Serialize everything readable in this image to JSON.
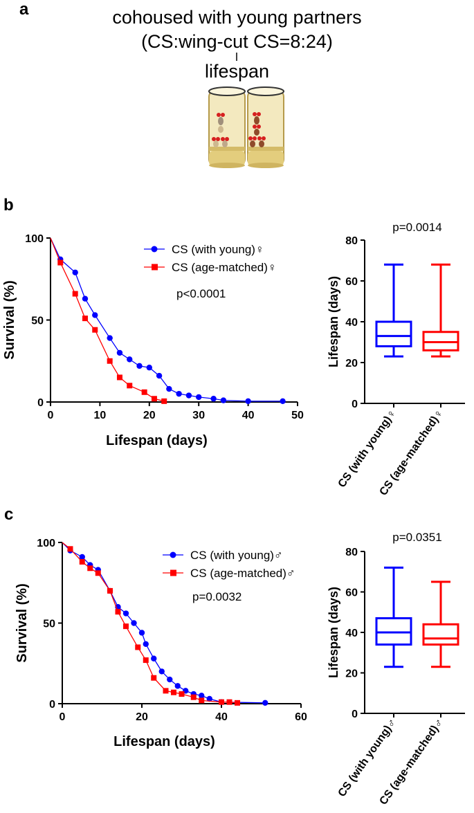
{
  "panel_a": {
    "letter": "a",
    "title_line1": "cohoused with young partners",
    "title_line2": "(CS:wing-cut CS=8:24)",
    "title_line3": "lifespan"
  },
  "chart_data": [
    {
      "id": "b-survival",
      "panel": "b",
      "type": "line",
      "xlabel": "Lifespan (days)",
      "ylabel": "Survival (%)",
      "xlim": [
        0,
        50
      ],
      "ylim": [
        0,
        100
      ],
      "xticks": [
        0,
        10,
        20,
        30,
        40,
        50
      ],
      "yticks": [
        0,
        50,
        100
      ],
      "annotation": "p<0.0001",
      "legend_position": "top-right",
      "series": [
        {
          "name": "CS (with young)♀",
          "color": "#0000ff",
          "marker": "circle",
          "x": [
            0,
            2,
            5,
            7,
            9,
            12,
            14,
            16,
            18,
            20,
            22,
            24,
            26,
            28,
            30,
            33,
            35,
            40,
            47
          ],
          "y": [
            100,
            87,
            79,
            63,
            53,
            39,
            30,
            26,
            22,
            21,
            16,
            8,
            5,
            4,
            3,
            2,
            1,
            0.5,
            0.5
          ]
        },
        {
          "name": "CS (age-matched)♀",
          "color": "#ff0000",
          "marker": "square",
          "x": [
            0,
            2,
            5,
            7,
            9,
            12,
            14,
            16,
            19,
            21,
            23
          ],
          "y": [
            100,
            85,
            66,
            51,
            44,
            25,
            15,
            10,
            6,
            2,
            0.5
          ]
        }
      ]
    },
    {
      "id": "b-box",
      "panel": "b",
      "type": "box",
      "ylabel": "Lifespan (days)",
      "ylim": [
        0,
        80
      ],
      "yticks": [
        0,
        20,
        40,
        60,
        80
      ],
      "annotation": "p=0.0014",
      "categories": [
        "CS (with young)♀",
        "CS (age-matched)♀"
      ],
      "boxes": [
        {
          "min": 23,
          "q1": 28,
          "median": 33,
          "q3": 40,
          "max": 68,
          "color": "#0000ff"
        },
        {
          "min": 23,
          "q1": 26,
          "median": 30,
          "q3": 35,
          "max": 68,
          "color": "#ff0000"
        }
      ]
    },
    {
      "id": "c-survival",
      "panel": "c",
      "type": "line",
      "xlabel": "Lifespan (days)",
      "ylabel": "Survival (%)",
      "xlim": [
        0,
        60
      ],
      "ylim": [
        0,
        100
      ],
      "xticks": [
        0,
        20,
        40,
        60
      ],
      "yticks": [
        0,
        50,
        100
      ],
      "annotation": "p=0.0032",
      "legend_position": "top-right",
      "series": [
        {
          "name": "CS (with young)♂",
          "color": "#0000ff",
          "marker": "circle",
          "x": [
            0,
            2,
            5,
            7,
            9,
            12,
            14,
            16,
            18,
            20,
            21,
            23,
            25,
            27,
            29,
            31,
            33,
            35,
            37,
            40,
            51
          ],
          "y": [
            100,
            95,
            91,
            86,
            83,
            70,
            60,
            56,
            50,
            44,
            37,
            28,
            20,
            15,
            11,
            8,
            6,
            5,
            3,
            1,
            0.5
          ]
        },
        {
          "name": "CS (age-matched)♂",
          "color": "#ff0000",
          "marker": "square",
          "x": [
            0,
            2,
            5,
            7,
            9,
            12,
            14,
            16,
            19,
            21,
            23,
            26,
            28,
            30,
            33,
            35,
            40,
            42,
            44
          ],
          "y": [
            100,
            96,
            88,
            84,
            81,
            70,
            57,
            48,
            35,
            27,
            16,
            8,
            7,
            6,
            4,
            2,
            1,
            1,
            0.5
          ]
        }
      ]
    },
    {
      "id": "c-box",
      "panel": "c",
      "type": "box",
      "ylabel": "Lifespan (days)",
      "ylim": [
        0,
        80
      ],
      "yticks": [
        0,
        20,
        40,
        60,
        80
      ],
      "annotation": "p=0.0351",
      "categories": [
        "CS (with young)♂",
        "CS (age-matched)♂"
      ],
      "boxes": [
        {
          "min": 23,
          "q1": 34,
          "median": 40,
          "q3": 47,
          "max": 72,
          "color": "#0000ff"
        },
        {
          "min": 23,
          "q1": 34,
          "median": 37,
          "q3": 44,
          "max": 65,
          "color": "#ff0000"
        }
      ]
    }
  ],
  "panel_b": {
    "letter": "b"
  },
  "panel_c": {
    "letter": "c"
  },
  "colors": {
    "with_young": "#0000ff",
    "age_matched": "#ff0000",
    "tube_fill": "#f1e6b5",
    "tube_food": "#e4cf80"
  }
}
